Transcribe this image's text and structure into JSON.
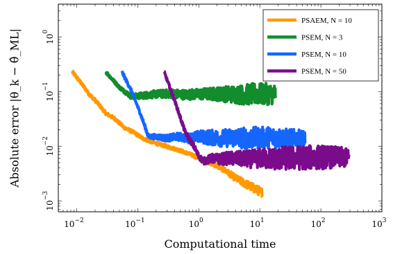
{
  "chart_data": {
    "type": "line",
    "xlabel": "Computational time",
    "ylabel": "Absolute error |θ_k − θ̂_ML|",
    "xscale": "log",
    "yscale": "log",
    "xlim": [
      0.005,
      1000
    ],
    "ylim": [
      0.00063,
      4.0
    ],
    "xticks": [
      0.01,
      0.1,
      1,
      10,
      100,
      1000
    ],
    "yticks": [
      0.001,
      0.01,
      0.1,
      1
    ],
    "xtick_labels": [
      {
        "base": "10",
        "exp": "−2"
      },
      {
        "base": "10",
        "exp": "−1"
      },
      {
        "base": "10",
        "exp": "0"
      },
      {
        "base": "10",
        "exp": "1"
      },
      {
        "base": "10",
        "exp": "2"
      },
      {
        "base": "10",
        "exp": "3"
      }
    ],
    "ytick_labels": [
      {
        "base": "10",
        "exp": "−3"
      },
      {
        "base": "10",
        "exp": "−2"
      },
      {
        "base": "10",
        "exp": "−1"
      },
      {
        "base": "10",
        "exp": "0"
      }
    ],
    "legend_position": "top-right",
    "series": [
      {
        "name": "PSAEM, N = 10",
        "color": "#ff9900",
        "x": [
          0.0085,
          0.012,
          0.016,
          0.022,
          0.03,
          0.042,
          0.06,
          0.085,
          0.12,
          0.17,
          0.25,
          0.35,
          0.5,
          0.7,
          1.0,
          1.4,
          2.0,
          2.8,
          4.0,
          5.6,
          8.0,
          11.0
        ],
        "y": [
          0.23,
          0.14,
          0.09,
          0.062,
          0.04,
          0.032,
          0.022,
          0.018,
          0.014,
          0.012,
          0.0105,
          0.0094,
          0.0083,
          0.0072,
          0.0061,
          0.0052,
          0.0044,
          0.0035,
          0.0026,
          0.0021,
          0.0017,
          0.0014
        ],
        "noise": [
          0.03,
          0.03,
          0.03,
          0.03,
          0.03,
          0.03,
          0.03,
          0.03,
          0.03,
          0.03,
          0.03,
          0.03,
          0.03,
          0.03,
          0.035,
          0.04,
          0.045,
          0.05,
          0.06,
          0.07,
          0.08,
          0.08
        ]
      },
      {
        "name": "PSEM, N = 3",
        "color": "#128c2c",
        "x": [
          0.03,
          0.05,
          0.08,
          0.12,
          0.2,
          0.35,
          0.6,
          1.0,
          1.8,
          3.0,
          5.0,
          8.0,
          12.0,
          18.0
        ],
        "y": [
          0.23,
          0.12,
          0.08,
          0.085,
          0.09,
          0.092,
          0.088,
          0.09,
          0.091,
          0.09,
          0.088,
          0.09,
          0.09,
          0.09
        ],
        "noise": [
          0.03,
          0.03,
          0.05,
          0.06,
          0.07,
          0.08,
          0.09,
          0.1,
          0.12,
          0.15,
          0.18,
          0.2,
          0.2,
          0.18
        ]
      },
      {
        "name": "PSEM, N = 10",
        "color": "#1466ff",
        "x": [
          0.055,
          0.08,
          0.11,
          0.15,
          0.2,
          0.3,
          0.45,
          0.7,
          1.0,
          1.5,
          2.5,
          4.0,
          6.0,
          10.0,
          15.0,
          25.0,
          40.0,
          55.0
        ],
        "y": [
          0.23,
          0.1,
          0.04,
          0.015,
          0.015,
          0.014,
          0.015,
          0.014,
          0.015,
          0.0145,
          0.014,
          0.0145,
          0.014,
          0.0142,
          0.0145,
          0.014,
          0.014,
          0.014
        ],
        "noise": [
          0.03,
          0.03,
          0.03,
          0.04,
          0.05,
          0.06,
          0.07,
          0.09,
          0.11,
          0.14,
          0.16,
          0.18,
          0.2,
          0.2,
          0.2,
          0.18,
          0.16,
          0.14
        ]
      },
      {
        "name": "PSEM, N = 50",
        "color": "#7a0c8c",
        "x": [
          0.27,
          0.4,
          0.6,
          0.85,
          1.0,
          1.2,
          1.6,
          2.2,
          3.0,
          4.5,
          7.0,
          10.0,
          16.0,
          25.0,
          40.0,
          60.0,
          100.0,
          160.0,
          250.0,
          290.0
        ],
        "y": [
          0.23,
          0.07,
          0.018,
          0.0095,
          0.0065,
          0.0053,
          0.006,
          0.0058,
          0.006,
          0.0059,
          0.0058,
          0.006,
          0.0059,
          0.006,
          0.0061,
          0.0062,
          0.0063,
          0.0063,
          0.0062,
          0.0062
        ],
        "noise": [
          0.03,
          0.03,
          0.04,
          0.05,
          0.05,
          0.06,
          0.08,
          0.1,
          0.12,
          0.14,
          0.16,
          0.18,
          0.2,
          0.22,
          0.22,
          0.22,
          0.22,
          0.2,
          0.18,
          0.14
        ]
      }
    ]
  }
}
